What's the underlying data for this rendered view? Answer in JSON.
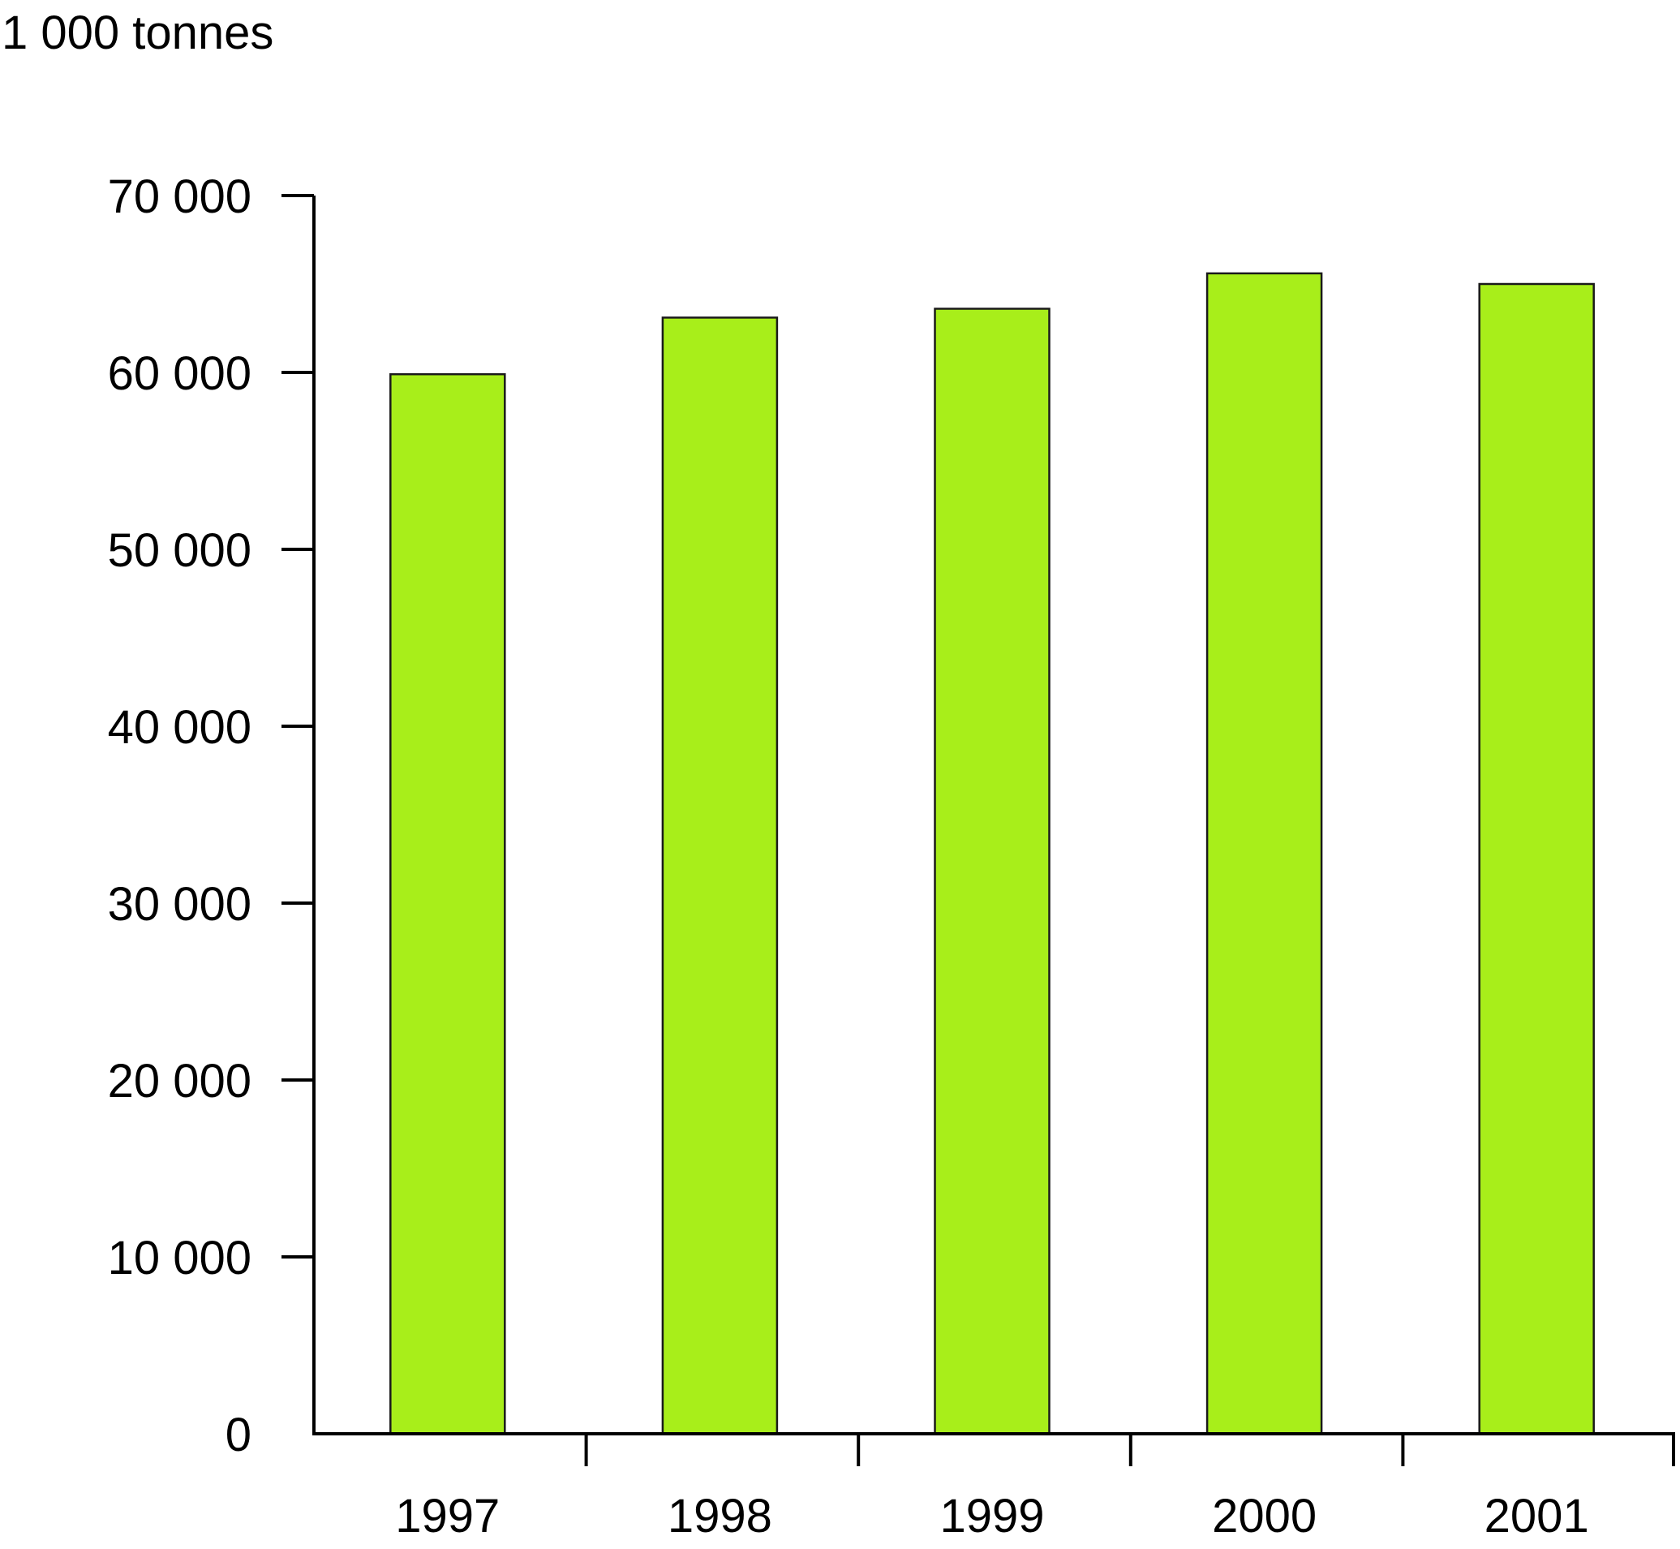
{
  "chart_data": {
    "type": "bar",
    "title": "",
    "unit_label": "1 000 tonnes",
    "xlabel": "",
    "ylabel": "1 000 tonnes",
    "categories": [
      "1997",
      "1998",
      "1999",
      "2000",
      "2001"
    ],
    "values": [
      59900,
      63100,
      63600,
      65600,
      65000
    ],
    "ylim": [
      0,
      70000
    ],
    "yticks": [
      0,
      10000,
      20000,
      30000,
      40000,
      50000,
      60000,
      70000
    ],
    "ytick_labels": [
      "0",
      "10 000",
      "20 000",
      "30 000",
      "40 000",
      "50 000",
      "60 000",
      "70 000"
    ],
    "grid": false,
    "legend": "none",
    "bar_color": "#a8ee1a",
    "bar_edge_color": "#1a1a1a",
    "axis_color": "#000000"
  }
}
